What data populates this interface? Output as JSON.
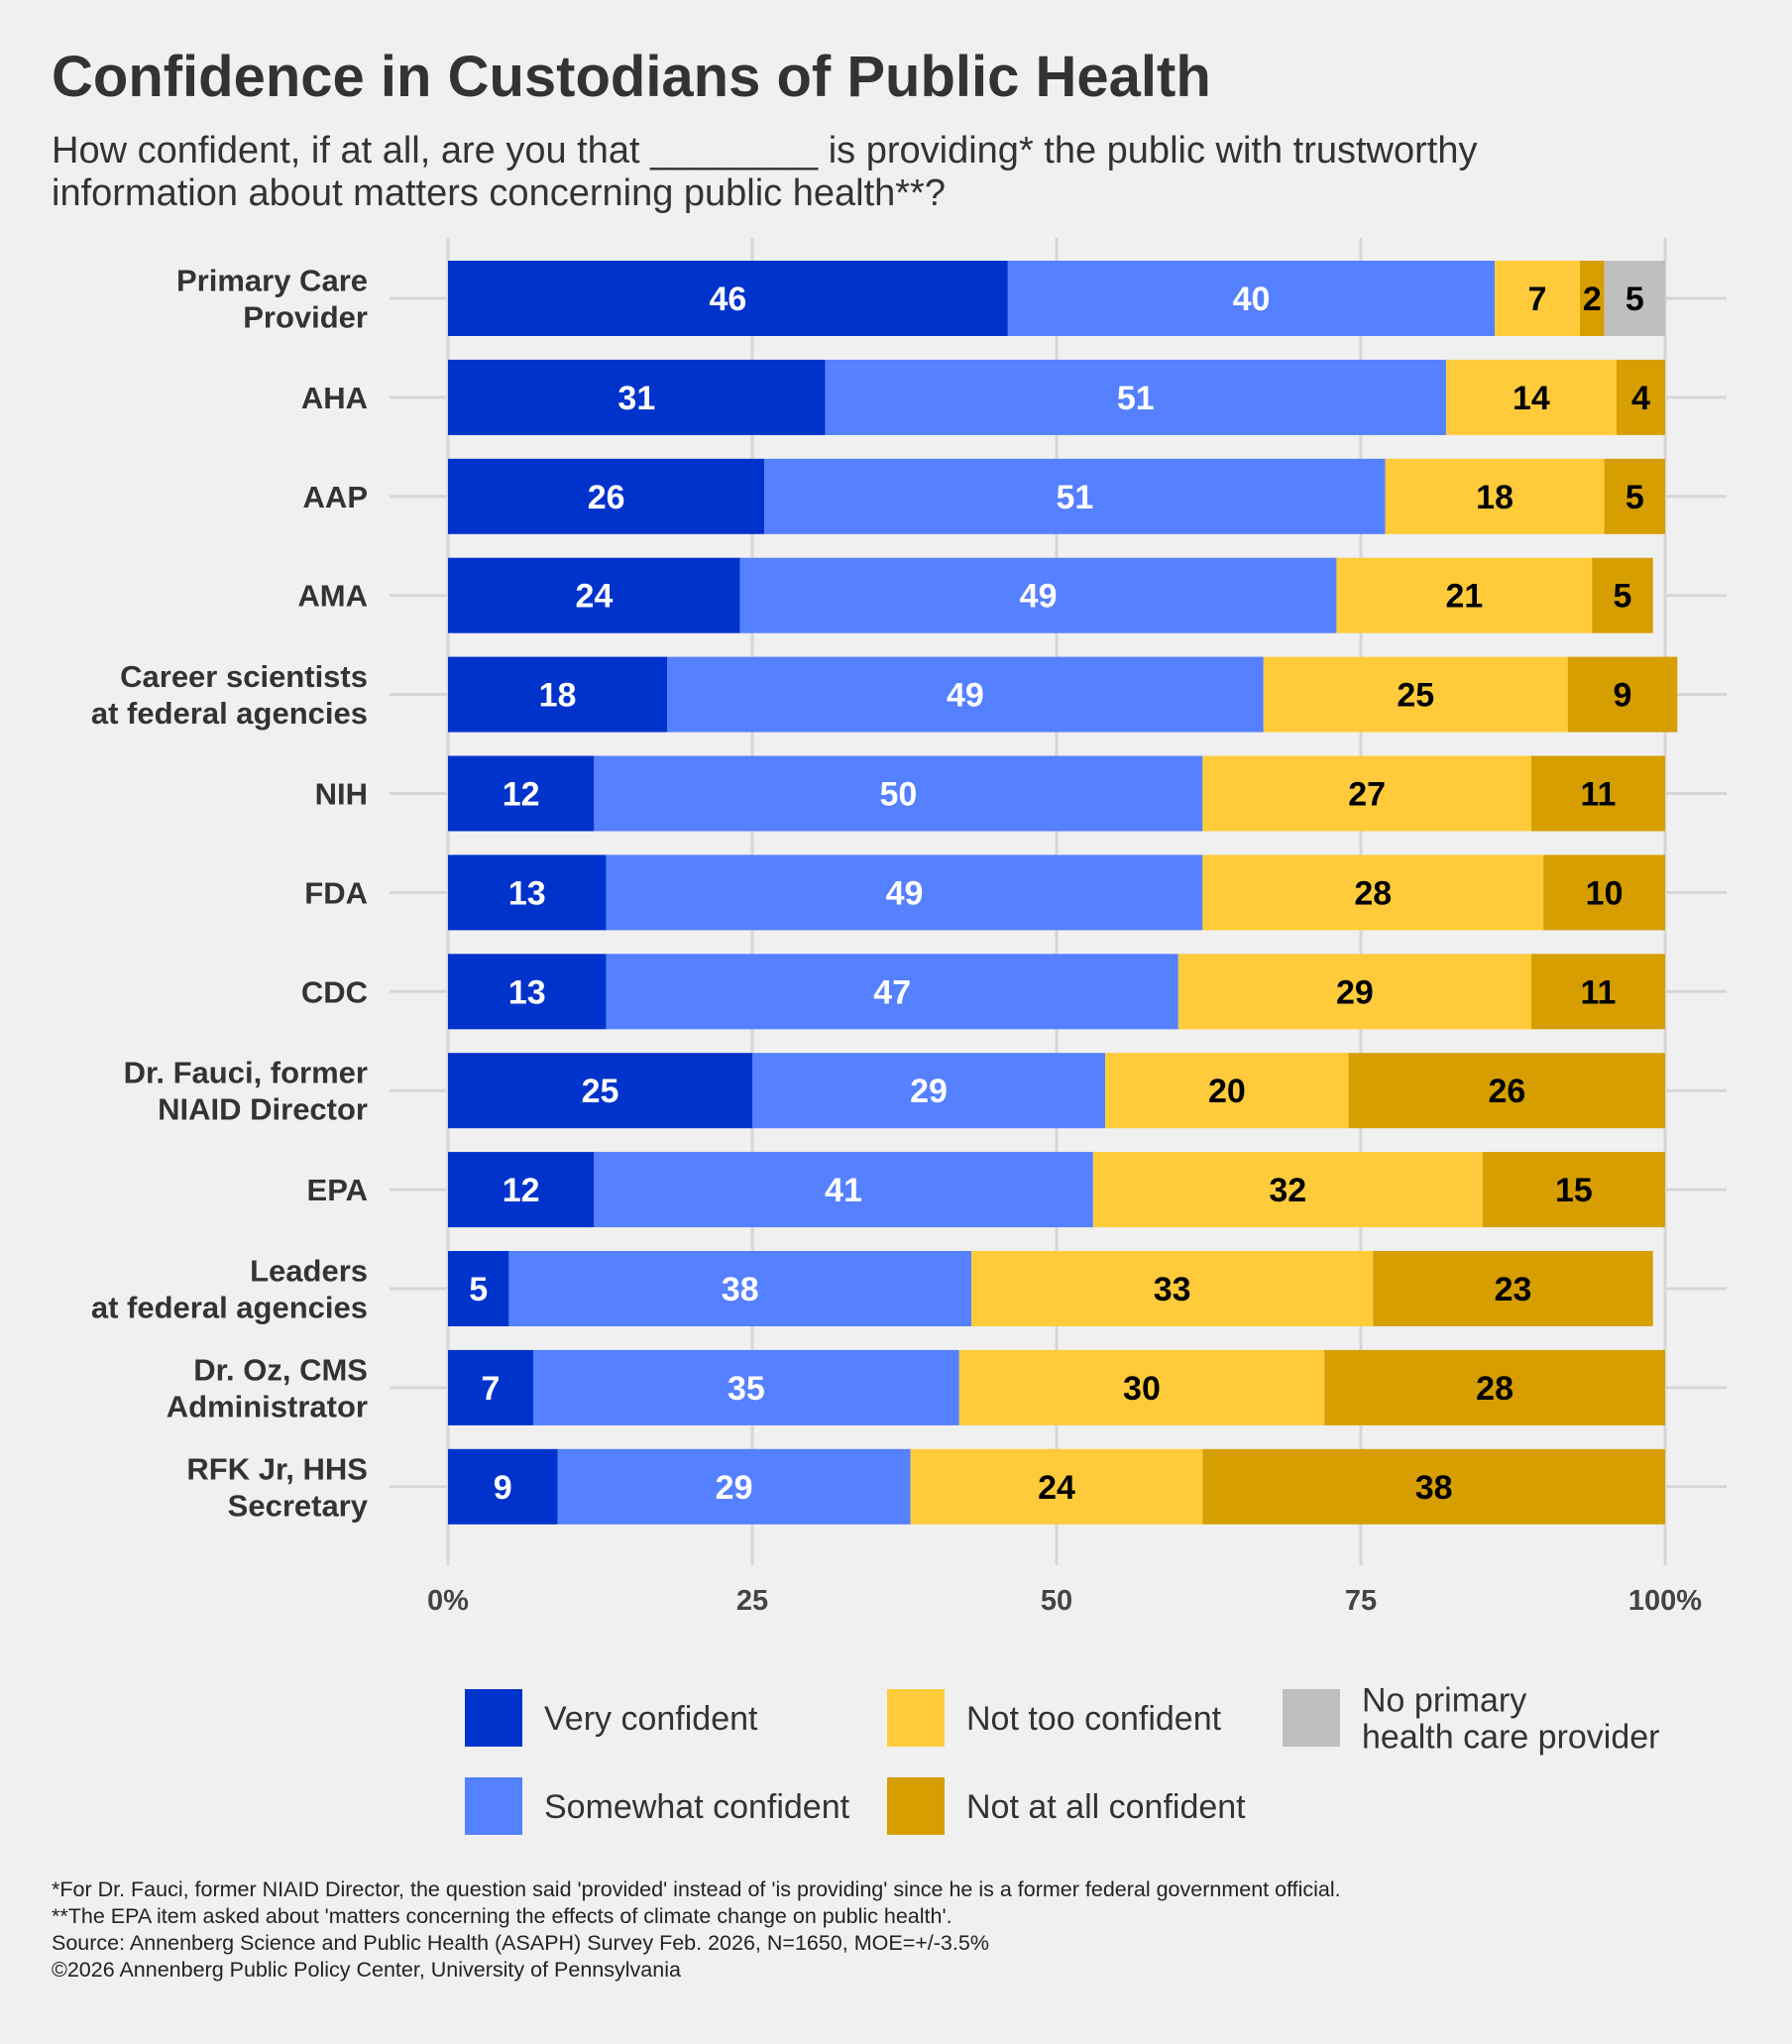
{
  "title": "Confidence in Custodians of Public Health",
  "subtitle": [
    "How confident, if at all, are you that ________ is providing* the public with trustworthy",
    "information about matters concerning public health**?"
  ],
  "footnotes": [
    "*For Dr. Fauci, former NIAID Director, the question said 'provided' instead of 'is providing' since he is a former federal government official.",
    "**The EPA item asked about 'matters concerning the effects of climate change on public health'.",
    "Source: Annenberg Science and Public Health (ASAPH) Survey Feb. 2026, N=1650, MOE=+/-3.5%",
    "©2026 Annenberg Public Policy Center, University of Pennsylvania"
  ],
  "chart_data": {
    "type": "bar",
    "orientation": "horizontal",
    "stacked": true,
    "xlim": [
      0,
      100
    ],
    "xticks": [
      "0%",
      "25",
      "50",
      "75",
      "100%"
    ],
    "grid": true,
    "legend_position": "bottom",
    "categories": [
      [
        "Primary Care",
        "Provider"
      ],
      [
        "AHA"
      ],
      [
        "AAP"
      ],
      [
        "AMA"
      ],
      [
        "Career scientists",
        "at federal agencies"
      ],
      [
        "NIH"
      ],
      [
        "FDA"
      ],
      [
        "CDC"
      ],
      [
        "Dr. Fauci, former",
        "NIAID Director"
      ],
      [
        "EPA"
      ],
      [
        "Leaders",
        "at federal agencies"
      ],
      [
        "Dr. Oz, CMS",
        "Administrator"
      ],
      [
        "RFK Jr, HHS",
        "Secretary"
      ]
    ],
    "series": [
      {
        "name": "Very confident",
        "color": "#0033cc",
        "label_color": "#ffffff",
        "values": [
          46,
          31,
          26,
          24,
          18,
          12,
          13,
          13,
          25,
          12,
          5,
          7,
          9
        ]
      },
      {
        "name": "Somewhat confident",
        "color": "#5580ff",
        "label_color": "#ffffff",
        "values": [
          40,
          51,
          51,
          49,
          49,
          50,
          49,
          47,
          29,
          41,
          38,
          35,
          29
        ]
      },
      {
        "name": "Not too confident",
        "color": "#ffcb3b",
        "label_color": "#000000",
        "values": [
          7,
          14,
          18,
          21,
          25,
          27,
          28,
          29,
          20,
          32,
          33,
          30,
          24
        ]
      },
      {
        "name": "Not at all confident",
        "color": "#d69e00",
        "label_color": "#000000",
        "values": [
          2,
          4,
          5,
          5,
          9,
          11,
          10,
          11,
          26,
          15,
          23,
          28,
          38
        ]
      },
      {
        "name": "No primary\nhealth care provider",
        "color": "#bfbfbf",
        "label_color": "#000000",
        "values": [
          5,
          null,
          null,
          null,
          null,
          null,
          null,
          null,
          null,
          null,
          null,
          null,
          null
        ]
      }
    ]
  }
}
